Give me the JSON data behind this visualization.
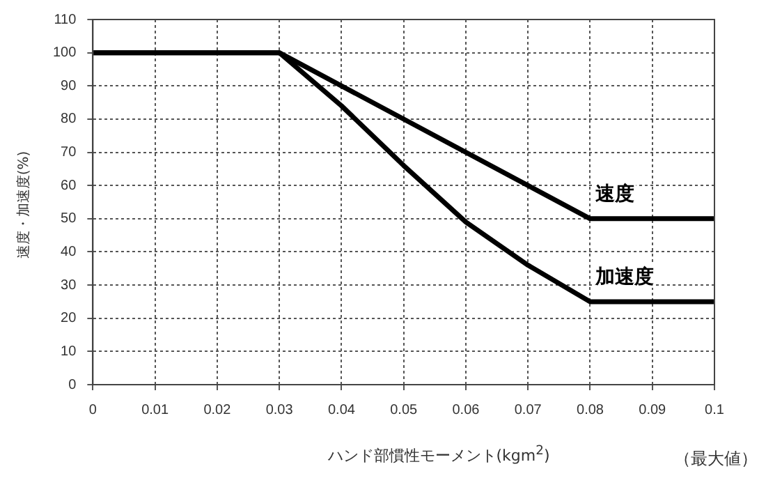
{
  "chart_data": {
    "type": "line",
    "xlabel": "ハンド部慣性モーメント(kgm$^{2}$)",
    "ylabel": "速度・加速度(%)",
    "series": [
      {
        "name": "速度",
        "color": "#000000",
        "x": [
          0,
          0.03,
          0.08,
          0.1
        ],
        "values": [
          100,
          100,
          50,
          50
        ]
      },
      {
        "name": "加速度",
        "color": "#000000",
        "x": [
          0,
          0.03,
          0.04,
          0.05,
          0.06,
          0.07,
          0.08,
          0.1
        ],
        "values": [
          100,
          100,
          84,
          66,
          49,
          36,
          25,
          25
        ]
      }
    ],
    "xlim": [
      0,
      0.1
    ],
    "xticks": [
      0,
      0.01,
      0.02,
      0.03,
      0.04,
      0.05,
      0.06,
      0.07,
      0.08,
      0.09,
      0.1
    ],
    "ylim": [
      0,
      110
    ],
    "yticks": [
      0,
      10,
      20,
      30,
      40,
      50,
      60,
      70,
      80,
      90,
      100,
      110
    ],
    "grid": true,
    "legend": false,
    "marker": "none",
    "line_style": "solid",
    "annotations": [
      "（最大値）"
    ]
  }
}
